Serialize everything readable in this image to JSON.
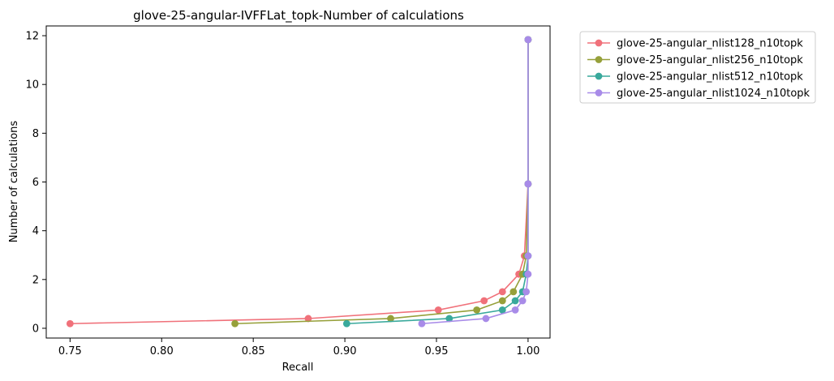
{
  "chart_data": {
    "type": "line",
    "title": "glove-25-angular-IVFFLat_topk-Number of calculations",
    "xlabel": "Recall",
    "ylabel": "Number of calculations",
    "xlim": [
      0.737,
      1.012
    ],
    "ylim": [
      -0.4,
      12.4
    ],
    "xticks": [
      0.75,
      0.8,
      0.85,
      0.9,
      0.95,
      1.0
    ],
    "xtick_labels": [
      "0.75",
      "0.80",
      "0.85",
      "0.90",
      "0.95",
      "1.00"
    ],
    "yticks": [
      0,
      2,
      4,
      6,
      8,
      10,
      12
    ],
    "ytick_labels": [
      "0",
      "2",
      "4",
      "6",
      "8",
      "10",
      "12"
    ],
    "grid": false,
    "legend_position": "outside-right-top",
    "series": [
      {
        "name": "glove-25-angular_nlist128_n10topk",
        "color": "#f0717a",
        "points": [
          {
            "x": 0.75,
            "y": 0.19
          },
          {
            "x": 0.88,
            "y": 0.4
          },
          {
            "x": 0.951,
            "y": 0.75
          },
          {
            "x": 0.976,
            "y": 1.13
          },
          {
            "x": 0.986,
            "y": 1.5
          },
          {
            "x": 0.995,
            "y": 2.22
          },
          {
            "x": 0.998,
            "y": 2.97
          },
          {
            "x": 1.0,
            "y": 5.92
          },
          {
            "x": 1.0,
            "y": 11.84
          }
        ]
      },
      {
        "name": "glove-25-angular_nlist256_n10topk",
        "color": "#96a03a",
        "points": [
          {
            "x": 0.84,
            "y": 0.19
          },
          {
            "x": 0.925,
            "y": 0.4
          },
          {
            "x": 0.972,
            "y": 0.75
          },
          {
            "x": 0.986,
            "y": 1.13
          },
          {
            "x": 0.992,
            "y": 1.5
          },
          {
            "x": 0.997,
            "y": 2.22
          },
          {
            "x": 0.999,
            "y": 2.97
          },
          {
            "x": 1.0,
            "y": 5.92
          },
          {
            "x": 1.0,
            "y": 11.84
          }
        ]
      },
      {
        "name": "glove-25-angular_nlist512_n10topk",
        "color": "#39a99c",
        "points": [
          {
            "x": 0.901,
            "y": 0.19
          },
          {
            "x": 0.957,
            "y": 0.4
          },
          {
            "x": 0.986,
            "y": 0.75
          },
          {
            "x": 0.993,
            "y": 1.13
          },
          {
            "x": 0.997,
            "y": 1.5
          },
          {
            "x": 0.999,
            "y": 2.22
          },
          {
            "x": 1.0,
            "y": 2.97
          },
          {
            "x": 1.0,
            "y": 5.92
          },
          {
            "x": 1.0,
            "y": 11.84
          }
        ]
      },
      {
        "name": "glove-25-angular_nlist1024_n10topk",
        "color": "#a88be8",
        "points": [
          {
            "x": 0.942,
            "y": 0.19
          },
          {
            "x": 0.977,
            "y": 0.4
          },
          {
            "x": 0.993,
            "y": 0.75
          },
          {
            "x": 0.997,
            "y": 1.13
          },
          {
            "x": 0.999,
            "y": 1.5
          },
          {
            "x": 1.0,
            "y": 2.22
          },
          {
            "x": 1.0,
            "y": 2.97
          },
          {
            "x": 1.0,
            "y": 5.92
          },
          {
            "x": 1.0,
            "y": 11.84
          }
        ]
      }
    ]
  }
}
